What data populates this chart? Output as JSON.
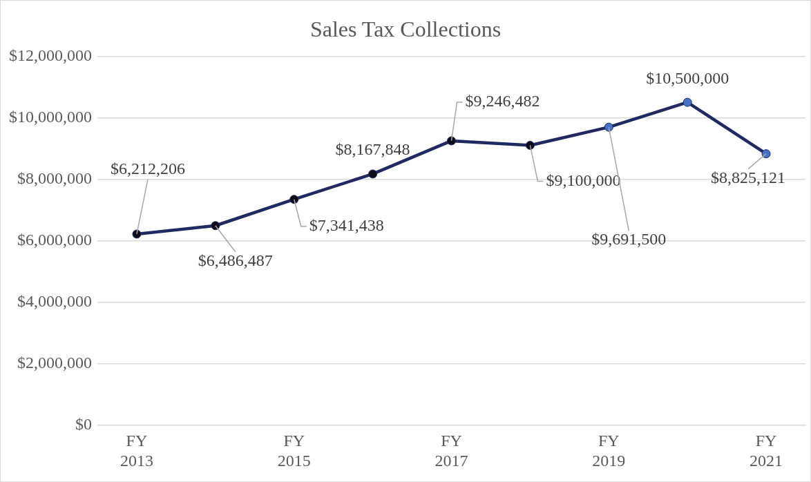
{
  "chart_data": {
    "type": "line",
    "title": "Sales Tax Collections",
    "categories": [
      "FY 2013",
      null,
      "FY 2015",
      null,
      "FY 2017",
      null,
      "FY 2019",
      null,
      "FY 2021"
    ],
    "series": [
      {
        "color": "#1f2a63",
        "colors": [
          "#0d0d1a",
          "#0d0d1a",
          "#0d0d1a",
          "#0d0d1a",
          "#0d0d1a",
          "#0d0d1a",
          "#4472c4",
          "#4472c4",
          "#4472c4"
        ],
        "values": [
          6212206,
          6486487,
          7341438,
          8167848,
          9246482,
          9100000,
          9691500,
          10500000,
          8825121
        ]
      }
    ],
    "ylim": [
      0,
      12000000
    ],
    "yticks": [
      {
        "value": 0,
        "label": "$0"
      },
      {
        "value": 2000000,
        "label": "$2,000,000"
      },
      {
        "value": 4000000,
        "label": "$4,000,000"
      },
      {
        "value": 6000000,
        "label": "$6,000,000"
      },
      {
        "value": 8000000,
        "label": "$8,000,000"
      },
      {
        "value": 10000000,
        "label": "$10,000,000"
      },
      {
        "value": 12000000,
        "label": "$12,000,000"
      }
    ],
    "value_labels": [
      "$6,212,206",
      "$6,486,487",
      "$7,341,438",
      "$8,167,848",
      "$9,246,482",
      "$9,100,000",
      "$9,691,500",
      "$10,500,000",
      "$8,825,121"
    ],
    "grid": "y",
    "marker": "circle",
    "line_style": "solid",
    "legend": false
  }
}
